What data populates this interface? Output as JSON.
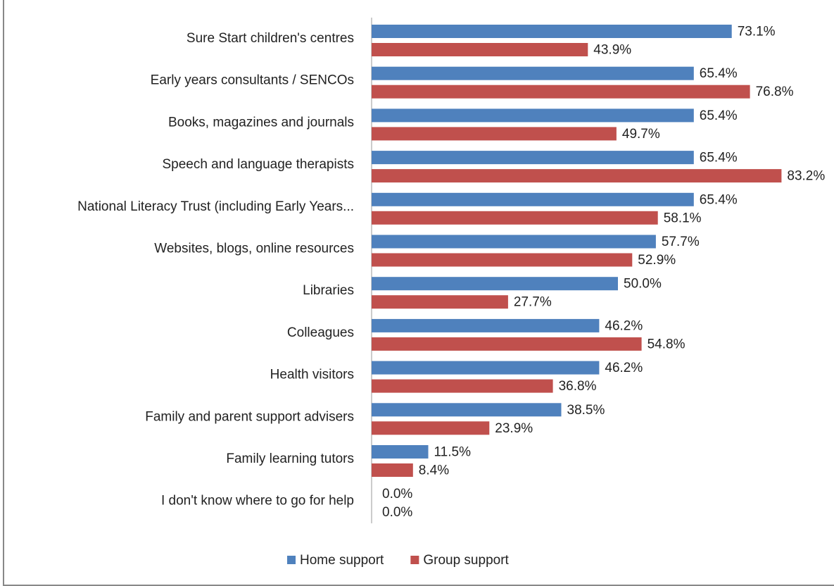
{
  "chart_data": {
    "type": "bar",
    "orientation": "horizontal",
    "categories": [
      "Sure Start children's centres",
      "Early years consultants / SENCOs",
      "Books, magazines and journals",
      "Speech and language therapists",
      "National Literacy Trust (including Early Years...",
      "Websites, blogs, online resources",
      "Libraries",
      "Colleagues",
      "Health visitors",
      "Family and parent  support advisers",
      "Family learning tutors",
      "I don't know where to go for help"
    ],
    "series": [
      {
        "name": "Home support",
        "color": "#4f81bd",
        "values": [
          73.1,
          65.4,
          65.4,
          65.4,
          65.4,
          57.7,
          50.0,
          46.2,
          46.2,
          38.5,
          11.5,
          0.0
        ],
        "value_labels": [
          "73.1%",
          "65.4%",
          "65.4%",
          "65.4%",
          "65.4%",
          "57.7%",
          "50.0%",
          "46.2%",
          "46.2%",
          "38.5%",
          "11.5%",
          "0.0%"
        ]
      },
      {
        "name": "Group support",
        "color": "#c0504d",
        "values": [
          43.9,
          76.8,
          49.7,
          83.2,
          58.1,
          52.9,
          27.7,
          54.8,
          36.8,
          23.9,
          8.4,
          0.0
        ],
        "value_labels": [
          "43.9%",
          "76.8%",
          "49.7%",
          "83.2%",
          "58.1%",
          "52.9%",
          "27.7%",
          "54.8%",
          "36.8%",
          "23.9%",
          "8.4%",
          "0.0%"
        ]
      }
    ],
    "xlim": [
      0,
      90
    ],
    "legend": "bottom"
  }
}
